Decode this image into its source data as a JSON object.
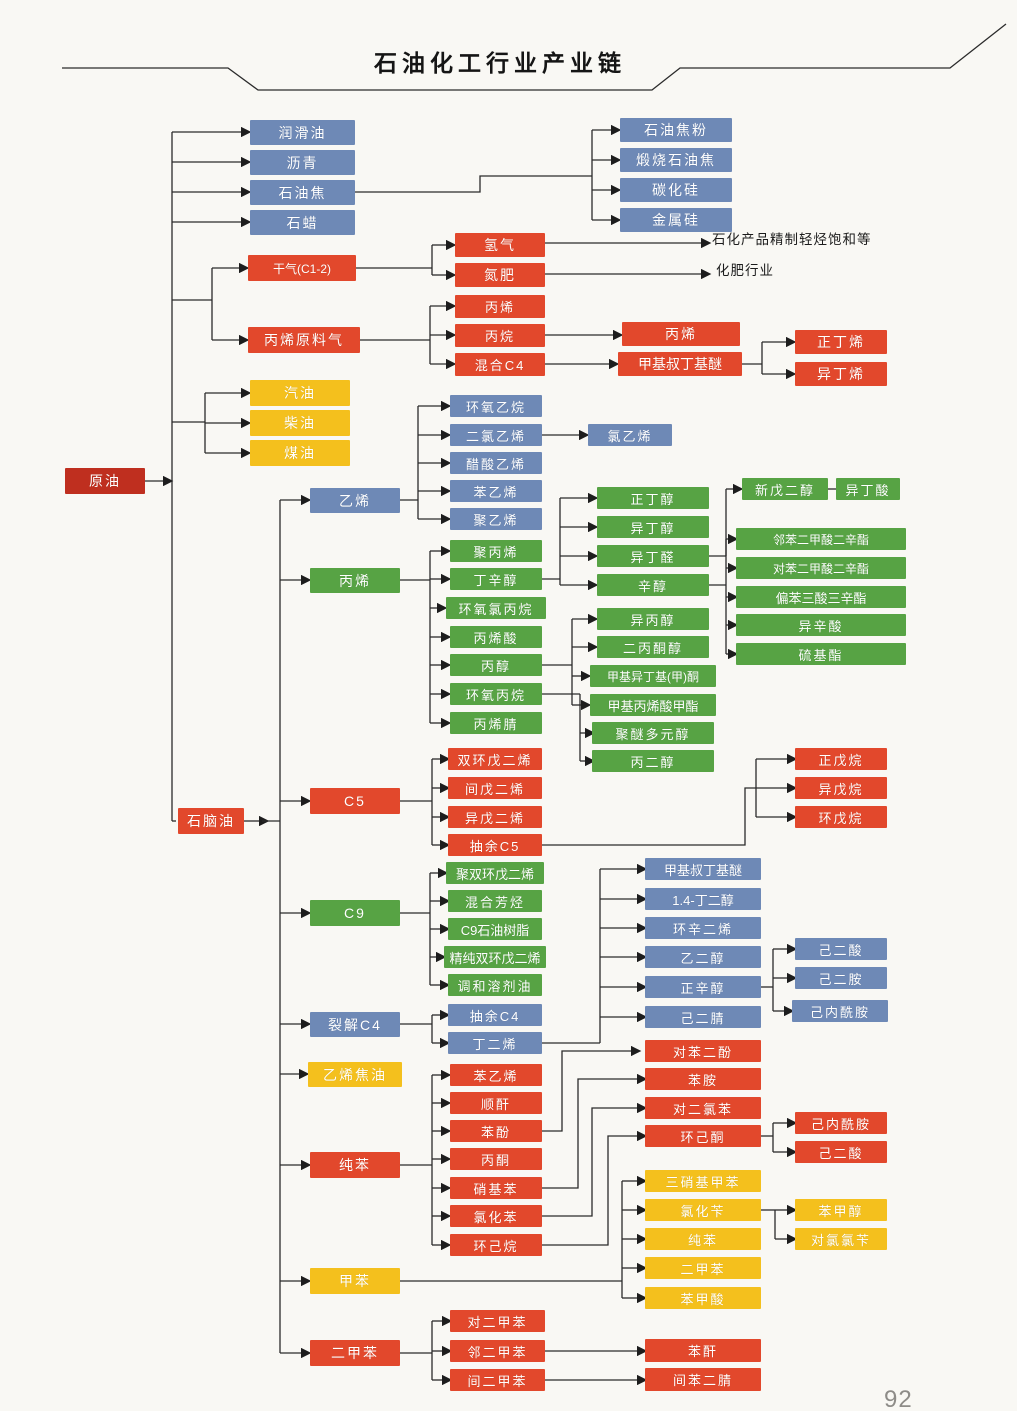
{
  "title": "石油化工行业产业链",
  "page_number": "92",
  "colors": {
    "blue": "#6e89b6",
    "red": "#e2482c",
    "dark_red": "#bf2f1f",
    "yellow": "#f4c01d",
    "green": "#57a344",
    "line": "#2b2b2b"
  },
  "annotations": [
    {
      "id": "a1",
      "text": "石化产品精制轻烃饱和等"
    },
    {
      "id": "a2",
      "text": "化肥行业"
    }
  ],
  "nodes": [
    {
      "id": "n0",
      "label": "原油",
      "color": "dark_red"
    },
    {
      "id": "n1",
      "label": "石脑油",
      "color": "red"
    },
    {
      "id": "b1",
      "label": "润滑油",
      "color": "blue"
    },
    {
      "id": "b2",
      "label": "沥青",
      "color": "blue"
    },
    {
      "id": "b3",
      "label": "石油焦",
      "color": "blue"
    },
    {
      "id": "b4",
      "label": "石蜡",
      "color": "blue"
    },
    {
      "id": "b5",
      "label": "石油焦粉",
      "color": "blue"
    },
    {
      "id": "b6",
      "label": "煅烧石油焦",
      "color": "blue"
    },
    {
      "id": "b7",
      "label": "碳化硅",
      "color": "blue"
    },
    {
      "id": "b8",
      "label": "金属硅",
      "color": "blue"
    },
    {
      "id": "r1",
      "label": "干气(C1-2)",
      "color": "red"
    },
    {
      "id": "r2",
      "label": "氢气",
      "color": "red"
    },
    {
      "id": "r3",
      "label": "氮肥",
      "color": "red"
    },
    {
      "id": "r4",
      "label": "丙烯原料气",
      "color": "red"
    },
    {
      "id": "r5",
      "label": "丙烯",
      "color": "red"
    },
    {
      "id": "r6",
      "label": "丙烷",
      "color": "red"
    },
    {
      "id": "r7",
      "label": "混合C4",
      "color": "red"
    },
    {
      "id": "r8",
      "label": "丙烯",
      "color": "red"
    },
    {
      "id": "r9",
      "label": "甲基叔丁基醚",
      "color": "red"
    },
    {
      "id": "r10",
      "label": "正丁烯",
      "color": "red"
    },
    {
      "id": "r11",
      "label": "异丁烯",
      "color": "red"
    },
    {
      "id": "y1",
      "label": "汽油",
      "color": "yellow"
    },
    {
      "id": "y2",
      "label": "柴油",
      "color": "yellow"
    },
    {
      "id": "y3",
      "label": "煤油",
      "color": "yellow"
    },
    {
      "id": "e0",
      "label": "乙烯",
      "color": "blue"
    },
    {
      "id": "e1",
      "label": "环氧乙烷",
      "color": "blue"
    },
    {
      "id": "e2",
      "label": "二氯乙烯",
      "color": "blue"
    },
    {
      "id": "e3",
      "label": "醋酸乙烯",
      "color": "blue"
    },
    {
      "id": "e4",
      "label": "苯乙烯",
      "color": "blue"
    },
    {
      "id": "e5",
      "label": "聚乙烯",
      "color": "blue"
    },
    {
      "id": "e6",
      "label": "氯乙烯",
      "color": "blue"
    },
    {
      "id": "p0",
      "label": "丙烯",
      "color": "green"
    },
    {
      "id": "p1",
      "label": "聚丙烯",
      "color": "green"
    },
    {
      "id": "p2",
      "label": "丁辛醇",
      "color": "green"
    },
    {
      "id": "p3",
      "label": "环氧氯丙烷",
      "color": "green"
    },
    {
      "id": "p4",
      "label": "丙烯酸",
      "color": "green"
    },
    {
      "id": "p5",
      "label": "丙醇",
      "color": "green"
    },
    {
      "id": "p6",
      "label": "环氧丙烷",
      "color": "green"
    },
    {
      "id": "p7",
      "label": "丙烯腈",
      "color": "green"
    },
    {
      "id": "g1",
      "label": "正丁醇",
      "color": "green"
    },
    {
      "id": "g2",
      "label": "异丁醇",
      "color": "green"
    },
    {
      "id": "g3",
      "label": "异丁醛",
      "color": "green"
    },
    {
      "id": "g4",
      "label": "辛醇",
      "color": "green"
    },
    {
      "id": "g5",
      "label": "异丙醇",
      "color": "green"
    },
    {
      "id": "g6",
      "label": "二丙酮醇",
      "color": "green"
    },
    {
      "id": "g7",
      "label": "甲基异丁基(甲)酮",
      "color": "green"
    },
    {
      "id": "g8",
      "label": "甲基丙烯酸甲酯",
      "color": "green"
    },
    {
      "id": "g9",
      "label": "聚醚多元醇",
      "color": "green"
    },
    {
      "id": "g10",
      "label": "丙二醇",
      "color": "green"
    },
    {
      "id": "h1",
      "label": "新戊二醇",
      "color": "green"
    },
    {
      "id": "h2",
      "label": "异丁酸",
      "color": "green"
    },
    {
      "id": "h3",
      "label": "邻苯二甲酸二辛酯",
      "color": "green"
    },
    {
      "id": "h4",
      "label": "对苯二甲酸二辛酯",
      "color": "green"
    },
    {
      "id": "h5",
      "label": "偏苯三酸三辛酯",
      "color": "green"
    },
    {
      "id": "h6",
      "label": "异辛酸",
      "color": "green"
    },
    {
      "id": "h7",
      "label": "硫基酯",
      "color": "green"
    },
    {
      "id": "c5",
      "label": "C5",
      "color": "red"
    },
    {
      "id": "f1",
      "label": "双环戊二烯",
      "color": "red"
    },
    {
      "id": "f2",
      "label": "间戊二烯",
      "color": "red"
    },
    {
      "id": "f3",
      "label": "异戊二烯",
      "color": "red"
    },
    {
      "id": "f4",
      "label": "抽余C5",
      "color": "red"
    },
    {
      "id": "f5",
      "label": "正戊烷",
      "color": "red"
    },
    {
      "id": "f6",
      "label": "异戊烷",
      "color": "red"
    },
    {
      "id": "f7",
      "label": "环戊烷",
      "color": "red"
    },
    {
      "id": "c9",
      "label": "C9",
      "color": "green"
    },
    {
      "id": "k1",
      "label": "聚双环戊二烯",
      "color": "green"
    },
    {
      "id": "k2",
      "label": "混合芳烃",
      "color": "green"
    },
    {
      "id": "k3",
      "label": "C9石油树脂",
      "color": "green"
    },
    {
      "id": "k4",
      "label": "精纯双环戊二烯",
      "color": "green"
    },
    {
      "id": "k5",
      "label": "调和溶剂油",
      "color": "green"
    },
    {
      "id": "lc4",
      "label": "裂解C4",
      "color": "blue"
    },
    {
      "id": "q1",
      "label": "抽余C4",
      "color": "blue"
    },
    {
      "id": "q2",
      "label": "丁二烯",
      "color": "blue"
    },
    {
      "id": "d1",
      "label": "甲基叔丁基醚",
      "color": "blue"
    },
    {
      "id": "d2",
      "label": "1.4-丁二醇",
      "color": "blue"
    },
    {
      "id": "d3",
      "label": "环辛二烯",
      "color": "blue"
    },
    {
      "id": "d4",
      "label": "乙二醇",
      "color": "blue"
    },
    {
      "id": "d5",
      "label": "正辛醇",
      "color": "blue"
    },
    {
      "id": "d6",
      "label": "己二腈",
      "color": "blue"
    },
    {
      "id": "d7",
      "label": "己二酸",
      "color": "blue"
    },
    {
      "id": "d8",
      "label": "己二胺",
      "color": "blue"
    },
    {
      "id": "d9",
      "label": "己内酰胺",
      "color": "blue"
    },
    {
      "id": "eto",
      "label": "乙烯焦油",
      "color": "yellow"
    },
    {
      "id": "cb",
      "label": "纯苯",
      "color": "red"
    },
    {
      "id": "s1",
      "label": "苯乙烯",
      "color": "red"
    },
    {
      "id": "s2",
      "label": "顺酐",
      "color": "red"
    },
    {
      "id": "s3",
      "label": "苯酚",
      "color": "red"
    },
    {
      "id": "s4",
      "label": "丙酮",
      "color": "red"
    },
    {
      "id": "s5",
      "label": "硝基苯",
      "color": "red"
    },
    {
      "id": "s6",
      "label": "氯化苯",
      "color": "red"
    },
    {
      "id": "s7",
      "label": "环己烷",
      "color": "red"
    },
    {
      "id": "t1",
      "label": "对苯二酚",
      "color": "red"
    },
    {
      "id": "t2",
      "label": "苯胺",
      "color": "red"
    },
    {
      "id": "t3",
      "label": "对二氯苯",
      "color": "red"
    },
    {
      "id": "t4",
      "label": "环己酮",
      "color": "red"
    },
    {
      "id": "t5",
      "label": "己内酰胺",
      "color": "red"
    },
    {
      "id": "t6",
      "label": "己二酸",
      "color": "red"
    },
    {
      "id": "u1",
      "label": "三硝基甲苯",
      "color": "yellow"
    },
    {
      "id": "u2",
      "label": "氯化苄",
      "color": "yellow"
    },
    {
      "id": "u3",
      "label": "纯苯",
      "color": "yellow"
    },
    {
      "id": "u4",
      "label": "二甲苯",
      "color": "yellow"
    },
    {
      "id": "u5",
      "label": "苯甲酸",
      "color": "yellow"
    },
    {
      "id": "u6",
      "label": "苯甲醇",
      "color": "yellow"
    },
    {
      "id": "u7",
      "label": "对氯氯苄",
      "color": "yellow"
    },
    {
      "id": "tol",
      "label": "甲苯",
      "color": "yellow"
    },
    {
      "id": "xyl",
      "label": "二甲苯",
      "color": "red"
    },
    {
      "id": "x1",
      "label": "对二甲苯",
      "color": "red"
    },
    {
      "id": "x2",
      "label": "邻二甲苯",
      "color": "red"
    },
    {
      "id": "x3",
      "label": "间二甲苯",
      "color": "red"
    },
    {
      "id": "x4",
      "label": "苯酐",
      "color": "red"
    },
    {
      "id": "x5",
      "label": "间苯二腈",
      "color": "red"
    }
  ]
}
